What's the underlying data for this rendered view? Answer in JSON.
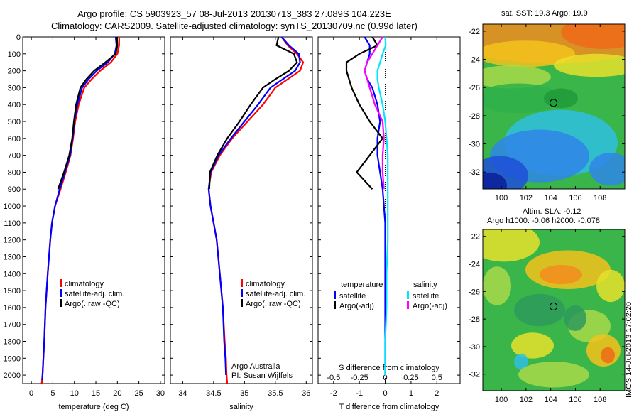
{
  "header": {
    "title_line1": "Argo profile: CS 5903923_57 08-Jul-2013 20130713_383 27.089S 104.223E",
    "title_line2": "Climatology: CARS2009. Satellite-adjusted climatology: synTS_20130709.nc (0.99d later)"
  },
  "depth_axis": {
    "ticks": [
      0,
      100,
      200,
      300,
      400,
      500,
      600,
      700,
      800,
      900,
      1000,
      1100,
      1200,
      1300,
      1400,
      1500,
      1600,
      1700,
      1800,
      1900,
      2000
    ],
    "range": [
      0,
      2050
    ]
  },
  "colors": {
    "climatology": "#ff0000",
    "satellite": "#0000ff",
    "argo": "#000000",
    "satellite_diff": "#00e5ff",
    "argo_sal_diff": "#ff00ff"
  },
  "panels": {
    "temperature": {
      "xlabel": "temperature (deg C)",
      "xticks": [
        "0",
        "5",
        "10",
        "15",
        "20",
        "25",
        "30"
      ],
      "xrange": [
        -2,
        31
      ],
      "legend": [
        "climatology",
        "satellite-adj. clim.",
        "Argo(..raw -QC)"
      ]
    },
    "salinity": {
      "xlabel": "salinity",
      "xticks": [
        "34",
        "34.5",
        "35",
        "35.5",
        "36"
      ],
      "xrange": [
        33.8,
        36.1
      ],
      "legend": [
        "climatology",
        "satellite-adj. clim.",
        "Argo(..raw -QC)"
      ],
      "credit_line1": "Argo Australia",
      "credit_line2": "PI: Susan Wijffels"
    },
    "difference": {
      "xlabel": "T difference from climatology",
      "xlabel_top": "S difference from climatology",
      "xticks": [
        "-2",
        "-1",
        "0",
        "1",
        "2"
      ],
      "xrange": [
        -2.6,
        2.9
      ],
      "sticks": [
        "-0.5",
        "-0.25",
        "0",
        "0.25",
        "0.5"
      ],
      "legend_temperature_title": "temperature",
      "legend_salinity_title": "salinity",
      "legend_items": [
        "satellite",
        "Argo(-adj)",
        "satellite",
        "Argo(-adj)"
      ]
    }
  },
  "maps": {
    "sst": {
      "caption": "sat. SST: 19.3  Argo: 19.9",
      "yticks": [
        "-22",
        "-24",
        "-26",
        "-28",
        "-30",
        "-32"
      ],
      "xticks": [
        "100",
        "102",
        "104",
        "106",
        "108"
      ],
      "lon_range": [
        98.5,
        110
      ],
      "lat_range": [
        -33.2,
        -21.5
      ]
    },
    "sla": {
      "caption1": "Altim. SLA: -0.12",
      "caption2": "Argo h1000: -0.06  h2000: -0.078",
      "yticks": [
        "-22",
        "-24",
        "-26",
        "-28",
        "-30",
        "-32"
      ],
      "xticks": [
        "100",
        "102",
        "104",
        "106",
        "108"
      ],
      "lon_range": [
        98.5,
        110
      ],
      "lat_range": [
        -33.2,
        -21.5
      ]
    },
    "float_position": {
      "lon": 104.223,
      "lat": -27.089
    }
  },
  "sidebar": {
    "stamp": "IMOS 14-Jul-2013 17:02:20"
  },
  "chart_data": [
    {
      "type": "line",
      "title": "",
      "xlabel": "temperature (deg C)",
      "ylabel": "",
      "y_axis": "depth",
      "xlim": [
        -2,
        31
      ],
      "ylim": [
        2050,
        0
      ],
      "series": [
        {
          "name": "climatology",
          "color": "#ff0000",
          "x": [
            20.4,
            20.4,
            20.0,
            18.5,
            16.0,
            14.0,
            12.3,
            11.0,
            10.2,
            9.7,
            9.1,
            8.0,
            6.8,
            5.5,
            4.8,
            4.4,
            3.8,
            3.3,
            3.0,
            2.8,
            2.6,
            2.5,
            2.4,
            2.3
          ],
          "y": [
            0,
            50,
            100,
            150,
            200,
            250,
            300,
            400,
            500,
            600,
            700,
            800,
            900,
            1000,
            1100,
            1200,
            1400,
            1600,
            1800,
            1900,
            2000,
            2030,
            2050,
            2050
          ]
        },
        {
          "name": "satellite-adj. clim.",
          "color": "#0000ff",
          "x": [
            19.6,
            19.8,
            19.4,
            17.8,
            15.2,
            13.3,
            11.8,
            10.7,
            10.0,
            9.6,
            9.0,
            7.8,
            6.6,
            5.5,
            4.8,
            4.4,
            3.8,
            3.3,
            3.0,
            2.8,
            2.6,
            2.5
          ],
          "y": [
            0,
            50,
            100,
            150,
            200,
            250,
            300,
            400,
            500,
            600,
            700,
            800,
            900,
            1000,
            1100,
            1200,
            1400,
            1600,
            1800,
            1900,
            2000,
            2030
          ]
        },
        {
          "name": "Argo(..raw -QC)",
          "color": "#000000",
          "x": [
            19.9,
            20.0,
            19.6,
            17.2,
            14.6,
            12.8,
            11.4,
            10.4,
            9.9,
            9.5,
            8.8,
            7.6,
            6.2
          ],
          "y": [
            0,
            50,
            100,
            150,
            200,
            250,
            300,
            400,
            500,
            600,
            700,
            800,
            900
          ]
        }
      ]
    },
    {
      "type": "line",
      "title": "",
      "xlabel": "salinity",
      "ylabel": "",
      "y_axis": "depth",
      "xlim": [
        33.8,
        36.1
      ],
      "ylim": [
        2050,
        0
      ],
      "series": [
        {
          "name": "climatology",
          "color": "#ff0000",
          "x": [
            35.6,
            35.7,
            35.85,
            35.95,
            35.9,
            35.7,
            35.5,
            35.3,
            35.05,
            34.8,
            34.6,
            34.46,
            34.42,
            34.45,
            34.5,
            34.55,
            34.6,
            34.65,
            34.68,
            34.7,
            34.71,
            34.72
          ],
          "y": [
            0,
            50,
            100,
            150,
            200,
            250,
            300,
            400,
            500,
            600,
            700,
            800,
            900,
            1000,
            1100,
            1200,
            1400,
            1600,
            1800,
            1900,
            2000,
            2050
          ]
        },
        {
          "name": "satellite-adj. clim.",
          "color": "#0000ff",
          "x": [
            35.6,
            35.72,
            35.88,
            35.9,
            35.82,
            35.62,
            35.42,
            35.22,
            35.0,
            34.78,
            34.58,
            34.45,
            34.42,
            34.45,
            34.5,
            34.55,
            34.6,
            34.65,
            34.67,
            34.69,
            34.7
          ],
          "y": [
            0,
            50,
            100,
            150,
            200,
            250,
            300,
            400,
            500,
            600,
            700,
            800,
            900,
            1000,
            1100,
            1200,
            1400,
            1600,
            1800,
            1900,
            2000
          ]
        },
        {
          "name": "Argo(..raw -QC)",
          "color": "#000000",
          "x": [
            35.55,
            35.52,
            35.8,
            35.85,
            35.72,
            35.5,
            35.3,
            35.1,
            34.92,
            34.72,
            34.56,
            34.44,
            34.43
          ],
          "y": [
            0,
            50,
            100,
            150,
            200,
            250,
            300,
            400,
            500,
            600,
            700,
            800,
            900
          ]
        }
      ]
    },
    {
      "type": "line",
      "title": "",
      "xlabel": "T difference from climatology",
      "ylabel": "",
      "y_axis": "depth",
      "xlim": [
        -2.6,
        2.9
      ],
      "ylim": [
        2050,
        0
      ],
      "series": [
        {
          "name": "satellite",
          "color": "#0000ff",
          "group": "temperature",
          "x": [
            -0.8,
            -0.6,
            -0.6,
            -0.7,
            -0.8,
            -0.7,
            -0.5,
            -0.3,
            -0.2,
            -0.3,
            -0.3,
            -0.2,
            -0.1,
            -0.05,
            0,
            0,
            0,
            0,
            0,
            0
          ],
          "y": [
            0,
            50,
            100,
            150,
            200,
            250,
            300,
            400,
            500,
            600,
            700,
            800,
            900,
            1000,
            1100,
            1200,
            1400,
            1600,
            1800,
            2000
          ]
        },
        {
          "name": "Argo(-adj)",
          "color": "#000000",
          "group": "temperature",
          "x": [
            -0.5,
            -0.3,
            -1.0,
            -1.5,
            -1.5,
            -1.4,
            -1.3,
            -1.0,
            -0.6,
            -0.1,
            -0.6,
            -1.1,
            -0.5
          ],
          "y": [
            0,
            50,
            100,
            150,
            200,
            250,
            300,
            400,
            500,
            600,
            700,
            800,
            900
          ]
        },
        {
          "name": "satellite",
          "color": "#00e5ff",
          "group": "salinity",
          "x": [
            0,
            0.02,
            -0.1,
            -0.2,
            -0.3,
            -0.3,
            -0.25,
            -0.1,
            0,
            0.05,
            0.1,
            0.1,
            0.1,
            0.1,
            0.1,
            0.1,
            0.05,
            0.05,
            0,
            0
          ],
          "y": [
            0,
            50,
            100,
            150,
            200,
            250,
            300,
            400,
            500,
            600,
            700,
            800,
            900,
            1000,
            1100,
            1200,
            1400,
            1600,
            1800,
            2000
          ]
        },
        {
          "name": "Argo(-adj)",
          "color": "#ff00ff",
          "group": "salinity",
          "x": [
            -0.1,
            -0.3,
            -0.5,
            -0.7,
            -0.8,
            -0.7,
            -0.6,
            -0.4,
            -0.1,
            -0.05,
            -0.1,
            -0.1,
            -0.05
          ],
          "y": [
            0,
            50,
            100,
            150,
            200,
            250,
            300,
            400,
            500,
            600,
            700,
            800,
            900
          ]
        }
      ]
    }
  ]
}
